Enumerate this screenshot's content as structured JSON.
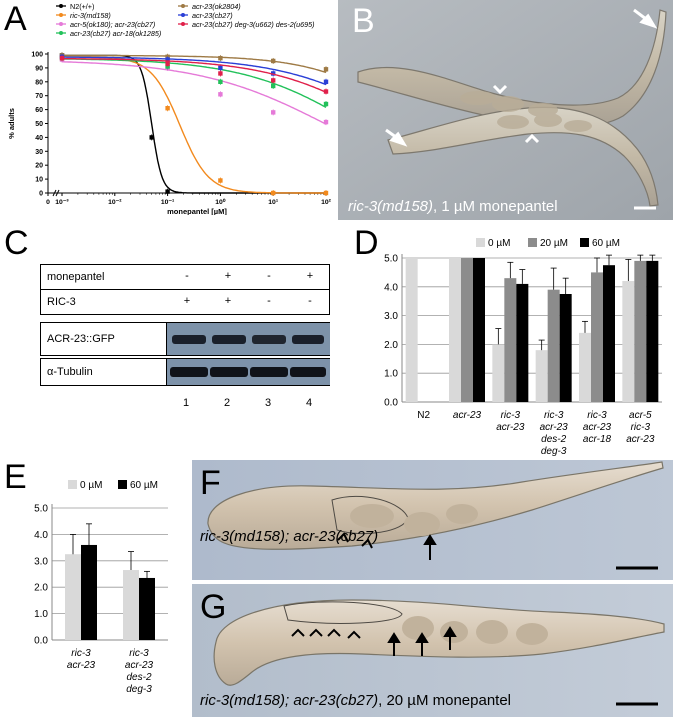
{
  "panels": {
    "A": "A",
    "B": "B",
    "C": "C",
    "D": "D",
    "E": "E",
    "F": "F",
    "G": "G"
  },
  "panelA": {
    "chart_data": {
      "type": "line",
      "xlabel": "monepantel [µM]",
      "ylabel": "% adults",
      "xscale": "log",
      "xlim": [
        0.001,
        100
      ],
      "ylim": [
        0,
        100
      ],
      "x_ticks": [
        "0",
        "10⁻³",
        "10⁻²",
        "10⁻¹",
        "10⁰",
        "10¹",
        "10²"
      ],
      "y_ticks": [
        "0",
        "10",
        "20",
        "30",
        "40",
        "50",
        "60",
        "70",
        "80",
        "90",
        "100"
      ],
      "series": [
        {
          "name": "N2(+/+)",
          "color": "#000000",
          "x": [
            0.001,
            0.05,
            0.1
          ],
          "y": [
            99,
            40,
            1
          ],
          "curve": "sigmoid",
          "ec50": 0.05,
          "hill": 4.5
        },
        {
          "name": "ric-3(md158)",
          "color": "#f28a1e",
          "x": [
            0.001,
            0.1,
            1,
            10,
            100
          ],
          "y": [
            98,
            61,
            9,
            0,
            0
          ],
          "curve": "sigmoid",
          "ec50": 0.17,
          "hill": 1.6
        },
        {
          "name": "acr-5(ok180); acr-23(cb27)",
          "color": "#e57ad8",
          "x": [
            0.001,
            0.1,
            1,
            10,
            100
          ],
          "y": [
            96,
            90,
            71,
            58,
            51
          ],
          "curve": "sigmoid",
          "ec50": 120,
          "hill": 0.35
        },
        {
          "name": "acr-23(cb27) acr-18(ok1285)",
          "color": "#22c15a",
          "x": [
            0.001,
            0.1,
            1,
            10,
            100
          ],
          "y": [
            97,
            91,
            80,
            77,
            64
          ],
          "curve": "sigmoid",
          "ec50": 400,
          "hill": 0.4
        },
        {
          "name": "acr-23(ok2804)",
          "color": "#9e7a45",
          "x": [
            0.001,
            0.1,
            1,
            10,
            100
          ],
          "y": [
            99,
            98,
            97,
            95,
            89
          ],
          "curve": "sigmoid",
          "ec50": 5000,
          "hill": 0.5
        },
        {
          "name": "acr-23(cb27)",
          "color": "#2a3fd6",
          "x": [
            0.001,
            0.1,
            1,
            10,
            100
          ],
          "y": [
            98,
            96,
            90,
            86,
            80
          ],
          "curve": "sigmoid",
          "ec50": 3000,
          "hill": 0.4
        },
        {
          "name": "acr-23(cb27) deg-3(u662) des-2(u695)",
          "color": "#e0204a",
          "x": [
            0.001,
            0.1,
            1,
            10,
            100
          ],
          "y": [
            97,
            93,
            86,
            81,
            73
          ],
          "curve": "sigmoid",
          "ec50": 1500,
          "hill": 0.4
        }
      ],
      "legend": [
        "N2(+/+)",
        "ric-3(md158)",
        "acr-5(ok180); acr-23(cb27)",
        "acr-23(cb27) acr-18(ok1285)",
        "acr-23(ok2804)",
        "acr-23(cb27)",
        "acr-23(cb27) deg-3(u662) des-2(u695)"
      ],
      "legend_placement": "top"
    }
  },
  "panelB": {
    "caption_italic": "ric-3(md158)",
    "caption_rest": ", 1 µM monepantel"
  },
  "panelC": {
    "rows": [
      {
        "label": "monepantel",
        "signs": [
          "-",
          "+",
          "-",
          "+"
        ]
      },
      {
        "label": "RIC-3",
        "signs": [
          "+",
          "+",
          "-",
          "-"
        ]
      }
    ],
    "blots": [
      "ACR-23::GFP",
      "α-Tubulin"
    ],
    "lanes": [
      "1",
      "2",
      "3",
      "4"
    ]
  },
  "panelD": {
    "chart_data": {
      "type": "bar",
      "legend": [
        "0 µM",
        "20 µM",
        "60 µM"
      ],
      "colors": [
        "#d9d9d9",
        "#8c8c8c",
        "#000000"
      ],
      "ylim": [
        0,
        5
      ],
      "y_ticks": [
        "0.0",
        "1.0",
        "2.0",
        "3.0",
        "4.0",
        "5.0"
      ],
      "categories": [
        "N2",
        "acr-23",
        "ric-3 acr-23",
        "ric-3 acr-23 des-2 deg-3",
        "ric-3 acr-23 acr-18",
        "acr-5 ric-3 acr-23"
      ],
      "series": [
        {
          "name": "0 µM",
          "values": [
            5.0,
            5.0,
            2.0,
            1.8,
            2.4,
            4.2
          ],
          "err": [
            0,
            0,
            0.55,
            0.35,
            0.4,
            0.75
          ]
        },
        {
          "name": "20 µM",
          "values": [
            null,
            5.0,
            4.3,
            3.9,
            4.5,
            4.9
          ],
          "err": [
            0,
            0,
            0.55,
            0.75,
            0.5,
            0.2
          ]
        },
        {
          "name": "60 µM",
          "values": [
            null,
            5.0,
            4.1,
            3.75,
            4.75,
            4.9
          ],
          "err": [
            0,
            0,
            0.5,
            0.55,
            0.35,
            0.2
          ]
        }
      ]
    }
  },
  "panelE": {
    "chart_data": {
      "type": "bar",
      "legend": [
        "0 µM",
        "60 µM"
      ],
      "colors": [
        "#d9d9d9",
        "#000000"
      ],
      "ylim": [
        0,
        5
      ],
      "y_ticks": [
        "0.0",
        "1.0",
        "2.0",
        "3.0",
        "4.0",
        "5.0"
      ],
      "categories": [
        "ric-3 acr-23",
        "ric-3 acr-23 des-2 deg-3"
      ],
      "series": [
        {
          "name": "0 µM",
          "values": [
            3.25,
            2.65
          ],
          "err": [
            0.75,
            0.7
          ]
        },
        {
          "name": "60 µM",
          "values": [
            3.6,
            2.35
          ],
          "err": [
            0.8,
            0.25
          ]
        }
      ]
    }
  },
  "panelF": {
    "caption": "ric-3(md158); acr-23(cb27)"
  },
  "panelG": {
    "caption_italic": "ric-3(md158); acr-23(cb27)",
    "caption_rest": ", 20 µM monepantel"
  }
}
